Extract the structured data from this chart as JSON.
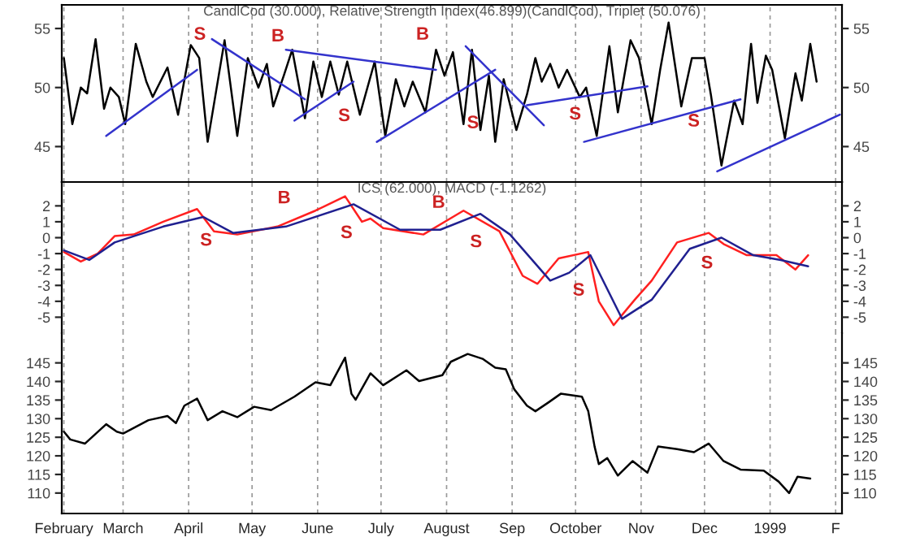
{
  "chart_data": [
    {
      "type": "line",
      "title": "CandlCod (30.000), Relative Strength Index(46.899)(CandlCod), Triplet (50.076)",
      "xlim": [
        "1998-01-31",
        "1999-02-04"
      ],
      "ylim": [
        42,
        57
      ],
      "yticks": [
        45,
        50,
        55
      ],
      "y2lim": [
        42,
        57
      ],
      "y2ticks": [
        45,
        50,
        55
      ],
      "tick_labels": "y",
      "grid": "x",
      "xticks": [
        {
          "value": "1998-02-01",
          "label": null
        },
        {
          "value": "1998-03-01",
          "label": null
        },
        {
          "value": "1998-04-01",
          "label": null
        },
        {
          "value": "1998-05-01",
          "label": null
        },
        {
          "value": "1998-06-01",
          "label": null
        },
        {
          "value": "1998-07-01",
          "label": null
        },
        {
          "value": "1998-08-01",
          "label": null
        },
        {
          "value": "1998-09-01",
          "label": null
        },
        {
          "value": "1998-10-01",
          "label": null
        },
        {
          "value": "1998-11-01",
          "label": null
        },
        {
          "value": "1998-12-01",
          "label": null
        },
        {
          "value": "1999-01-01",
          "label": null
        },
        {
          "value": "1999-02-01",
          "label": null
        }
      ],
      "series": [
        {
          "color": "#000000",
          "x": [
            "1998-02-01",
            "1998-02-05",
            "1998-02-09",
            "1998-02-12",
            "1998-02-16",
            "1998-02-20",
            "1998-02-23",
            "1998-02-27",
            "1998-03-02",
            "1998-03-07",
            "1998-03-12",
            "1998-03-15",
            "1998-03-22",
            "1998-03-27",
            "1998-04-02",
            "1998-04-06",
            "1998-04-10",
            "1998-04-18",
            "1998-04-24",
            "1998-04-29",
            "1998-05-04",
            "1998-05-08",
            "1998-05-11",
            "1998-05-16",
            "1998-05-20",
            "1998-05-26",
            "1998-05-30",
            "1998-06-03",
            "1998-06-07",
            "1998-06-11",
            "1998-06-15",
            "1998-06-21",
            "1998-06-28",
            "1998-07-03",
            "1998-07-08",
            "1998-07-12",
            "1998-07-16",
            "1998-07-22",
            "1998-07-27",
            "1998-07-31",
            "1998-08-04",
            "1998-08-09",
            "1998-08-13",
            "1998-08-17",
            "1998-08-21",
            "1998-08-24",
            "1998-08-28",
            "1998-09-03",
            "1998-09-08",
            "1998-09-12",
            "1998-09-15",
            "1998-09-19",
            "1998-09-23",
            "1998-09-27",
            "1998-10-03",
            "1998-10-06",
            "1998-10-11",
            "1998-10-17",
            "1998-10-21",
            "1998-10-27",
            "1998-10-31",
            "1998-11-06",
            "1998-11-10",
            "1998-11-14",
            "1998-11-20",
            "1998-11-25",
            "1998-12-01",
            "1998-12-04",
            "1998-12-09",
            "1998-12-15",
            "1998-12-19",
            "1998-12-23",
            "1998-12-26",
            "1998-12-30",
            "1999-01-02",
            "1999-01-08",
            "1999-01-13",
            "1999-01-16",
            "1999-01-20",
            "1999-01-23"
          ],
          "values": [
            52.5,
            46.9,
            50,
            49.5,
            54.1,
            48.2,
            50,
            49.2,
            46.9,
            53.7,
            50.5,
            49.2,
            51.7,
            47.7,
            53.6,
            52.5,
            45.4,
            54,
            45.9,
            52.5,
            50,
            52,
            48.4,
            51,
            53.2,
            47.4,
            52.2,
            49.2,
            52.2,
            49.4,
            52.2,
            47.7,
            52.2,
            45.9,
            50.7,
            48.4,
            50.5,
            47.9,
            53.2,
            51,
            53,
            46.9,
            53.2,
            46.4,
            51,
            45.4,
            50.7,
            46.4,
            49.4,
            52.5,
            50.5,
            52,
            50,
            51.5,
            49.2,
            50,
            45.9,
            53.5,
            47.9,
            54,
            52.5,
            46.9,
            51.5,
            55.5,
            48.4,
            52.5,
            52.5,
            49.4,
            43.4,
            48.9,
            46.9,
            53.7,
            48.7,
            52.7,
            51.5,
            45.7,
            51.2,
            48.9,
            53.7,
            50.5
          ]
        },
        {
          "color": "#3333cc",
          "x": [
            "1998-02-21",
            "1998-04-05"
          ],
          "values": [
            45.9,
            51.5
          ]
        },
        {
          "color": "#3333cc",
          "x": [
            "1998-04-12",
            "1998-05-26"
          ],
          "values": [
            54.1,
            49
          ]
        },
        {
          "color": "#3333cc",
          "x": [
            "1998-05-21",
            "1998-06-18"
          ],
          "values": [
            47.2,
            50.5
          ]
        },
        {
          "color": "#3333cc",
          "x": [
            "1998-05-17",
            "1998-07-27"
          ],
          "values": [
            53.2,
            51.5
          ]
        },
        {
          "color": "#3333cc",
          "x": [
            "1998-06-29",
            "1998-08-24"
          ],
          "values": [
            45.4,
            51.5
          ]
        },
        {
          "color": "#3333cc",
          "x": [
            "1998-08-10",
            "1998-09-16"
          ],
          "values": [
            53.5,
            46.8
          ]
        },
        {
          "color": "#3333cc",
          "x": [
            "1998-09-08",
            "1998-11-04"
          ],
          "values": [
            48.5,
            50.1
          ]
        },
        {
          "color": "#3333cc",
          "x": [
            "1998-10-05",
            "1998-12-18"
          ],
          "values": [
            45.4,
            49
          ]
        },
        {
          "color": "#3333cc",
          "x": [
            "1998-12-07",
            "1999-02-03"
          ],
          "values": [
            42.9,
            47.7
          ]
        }
      ],
      "annotations": [
        "S",
        "B",
        "B",
        "S",
        "S",
        "S",
        "S"
      ]
    },
    {
      "type": "line",
      "title": "ICS (62.000), MACD (-1.1262)",
      "xlim": [
        "1998-01-31",
        "1999-02-04"
      ],
      "ylim": [
        -6,
        3.5
      ],
      "yticks": [
        {
          "value": -5,
          "label": "-5"
        },
        {
          "value": -4,
          "label": "-4"
        },
        {
          "value": -3,
          "label": "-3"
        },
        {
          "value": -2,
          "label": "-2"
        },
        {
          "value": -1,
          "label": "-1"
        },
        0,
        1,
        2
      ],
      "y2lim": [
        -6,
        3.5
      ],
      "y2ticks": [
        {
          "value": -5,
          "label": "-5"
        },
        {
          "value": -4,
          "label": "-4"
        },
        {
          "value": -3,
          "label": "-3"
        },
        {
          "value": -2,
          "label": "-2"
        },
        {
          "value": -1,
          "label": "-1"
        },
        0,
        1,
        2
      ],
      "tick_labels": "y",
      "grid": "x",
      "xticks": [
        {
          "value": "1998-02-01",
          "label": null
        },
        {
          "value": "1998-03-01",
          "label": null
        },
        {
          "value": "1998-04-01",
          "label": null
        },
        {
          "value": "1998-05-01",
          "label": null
        },
        {
          "value": "1998-06-01",
          "label": null
        },
        {
          "value": "1998-07-01",
          "label": null
        },
        {
          "value": "1998-08-01",
          "label": null
        },
        {
          "value": "1998-09-01",
          "label": null
        },
        {
          "value": "1998-10-01",
          "label": null
        },
        {
          "value": "1998-11-01",
          "label": null
        },
        {
          "value": "1998-12-01",
          "label": null
        },
        {
          "value": "1999-01-01",
          "label": null
        },
        {
          "value": "1999-02-01",
          "label": null
        }
      ],
      "series": [
        {
          "color": "#ff2020",
          "x": [
            "1998-02-01",
            "1998-02-09",
            "1998-02-17",
            "1998-02-25",
            "1998-03-06",
            "1998-03-20",
            "1998-04-05",
            "1998-04-13",
            "1998-04-24",
            "1998-05-13",
            "1998-05-31",
            "1998-06-14",
            "1998-06-22",
            "1998-06-26",
            "1998-07-02",
            "1998-07-21",
            "1998-08-09",
            "1998-08-26",
            "1998-09-06",
            "1998-09-13",
            "1998-09-23",
            "1998-10-07",
            "1998-10-12",
            "1998-10-19",
            "1998-10-29",
            "1998-11-06",
            "1998-11-18",
            "1998-12-03",
            "1998-12-10",
            "1998-12-21",
            "1999-01-04",
            "1999-01-13",
            "1999-01-19"
          ],
          "values": [
            -0.9,
            -1.5,
            -1.0,
            0.1,
            0.2,
            1.0,
            1.8,
            0.4,
            0.2,
            0.7,
            1.7,
            2.6,
            1.0,
            1.2,
            0.6,
            0.2,
            1.7,
            0.4,
            -2.4,
            -2.9,
            -1.3,
            -0.9,
            -4.0,
            -5.5,
            -3.9,
            -2.7,
            -0.3,
            0.3,
            -0.4,
            -1.1,
            -1.1,
            -2.0,
            -1.1
          ]
        },
        {
          "color": "#202090",
          "x": [
            "1998-02-01",
            "1998-02-13",
            "1998-02-25",
            "1998-03-20",
            "1998-04-08",
            "1998-04-22",
            "1998-05-17",
            "1998-06-18",
            "1998-07-10",
            "1998-07-29",
            "1998-08-17",
            "1998-08-31",
            "1998-09-19",
            "1998-09-28",
            "1998-10-08",
            "1998-10-23",
            "1998-11-06",
            "1998-11-24",
            "1998-12-09",
            "1998-12-24",
            "1999-01-06",
            "1999-01-19"
          ],
          "values": [
            -0.8,
            -1.4,
            -0.3,
            0.7,
            1.3,
            0.3,
            0.7,
            2.1,
            0.5,
            0.5,
            1.5,
            0.2,
            -2.7,
            -2.2,
            -1.1,
            -5.1,
            -3.9,
            -0.7,
            0.0,
            -1.1,
            -1.4,
            -1.8
          ]
        }
      ],
      "annotations": [
        "B",
        "B",
        "S",
        "S",
        "S",
        "S",
        "S"
      ]
    },
    {
      "type": "line",
      "xlim": [
        "1998-01-31",
        "1999-02-04"
      ],
      "ylim": [
        104.5,
        153
      ],
      "yticks": [
        110,
        115,
        120,
        125,
        130,
        135,
        140,
        145
      ],
      "y2lim": [
        104.5,
        153
      ],
      "y2ticks": [
        110,
        115,
        120,
        125,
        130,
        135,
        140,
        145
      ],
      "grid": "x",
      "xticks": [
        {
          "value": "1998-02-01",
          "label": "February"
        },
        {
          "value": "1998-03-01",
          "label": "March"
        },
        {
          "value": "1998-04-01",
          "label": "April"
        },
        {
          "value": "1998-05-01",
          "label": "May"
        },
        {
          "value": "1998-06-01",
          "label": "June"
        },
        {
          "value": "1998-07-01",
          "label": "July"
        },
        {
          "value": "1998-08-01",
          "label": "August"
        },
        {
          "value": "1998-09-01",
          "label": "Sep"
        },
        {
          "value": "1998-10-01",
          "label": "October"
        },
        {
          "value": "1998-11-01",
          "label": "Nov"
        },
        {
          "value": "1998-12-01",
          "label": "Dec"
        },
        {
          "value": "1999-01-01",
          "label": "1999"
        },
        {
          "value": "1999-02-01",
          "label": "F"
        }
      ],
      "series": [
        {
          "color": "#000000",
          "x": [
            "1998-02-01",
            "1998-02-04",
            "1998-02-11",
            "1998-02-21",
            "1998-02-26",
            "1998-03-01",
            "1998-03-13",
            "1998-03-22",
            "1998-03-26",
            "1998-03-30",
            "1998-04-05",
            "1998-04-10",
            "1998-04-17",
            "1998-04-24",
            "1998-05-02",
            "1998-05-10",
            "1998-05-21",
            "1998-05-31",
            "1998-06-07",
            "1998-06-14",
            "1998-06-17",
            "1998-06-19",
            "1998-06-26",
            "1998-07-02",
            "1998-07-13",
            "1998-07-19",
            "1998-07-30",
            "1998-08-03",
            "1998-08-11",
            "1998-08-18",
            "1998-08-24",
            "1998-08-29",
            "1998-09-02",
            "1998-09-08",
            "1998-09-12",
            "1998-09-18",
            "1998-09-24",
            "1998-10-04",
            "1998-10-07",
            "1998-10-10",
            "1998-10-12",
            "1998-10-16",
            "1998-10-21",
            "1998-10-28",
            "1998-11-04",
            "1998-11-09",
            "1998-11-18",
            "1998-11-26",
            "1998-12-03",
            "1998-12-10",
            "1998-12-18",
            "1998-12-29",
            "1999-01-05",
            "1999-01-10",
            "1999-01-14",
            "1999-01-20"
          ],
          "values": [
            126.5,
            124.4,
            123.3,
            128.5,
            126.5,
            126,
            129.6,
            130.7,
            128.8,
            133.5,
            135.4,
            129.6,
            132,
            130.4,
            133.2,
            132.3,
            135.9,
            139.8,
            139,
            146.4,
            136.7,
            135.1,
            142.2,
            139,
            143,
            140.1,
            141.7,
            145.3,
            147.4,
            146.1,
            143.7,
            143.3,
            137.9,
            133.5,
            132,
            134.3,
            136.7,
            135.9,
            132,
            122.5,
            117.8,
            119.4,
            114.7,
            118.6,
            115.5,
            122.5,
            121.8,
            121,
            123.3,
            118.6,
            116.3,
            116,
            113.1,
            110,
            114.4,
            113.9
          ]
        }
      ]
    }
  ]
}
